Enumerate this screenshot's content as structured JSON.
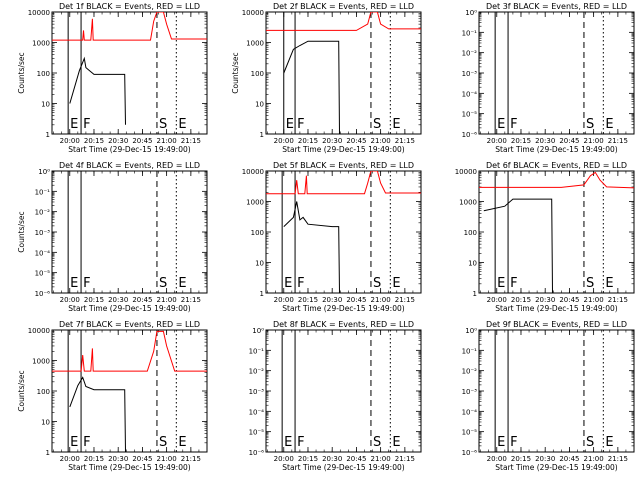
{
  "chart_data": [
    {
      "type": "line",
      "title": "Det 1f BLACK = Events, RED = LLD",
      "ylabel": "Counts/sec",
      "xlabel": "Start Time (29-Dec-15 19:49:00)",
      "x_ticks": [
        "20:00",
        "20:15",
        "20:30",
        "20:45",
        "21:00",
        "21:15"
      ],
      "y_ticks": [
        "1",
        "10",
        "100",
        "1000",
        "10000"
      ],
      "ylim": [
        1,
        10000
      ],
      "xlim": [
        "19:49",
        "21:25"
      ],
      "markers": [
        {
          "label": "E",
          "t": "19:59"
        },
        {
          "label": "F",
          "t": "20:07"
        },
        {
          "label": "S",
          "t": "20:54"
        },
        {
          "label": "E",
          "t": "21:06"
        }
      ],
      "series": [
        {
          "color": "#000000",
          "points": [
            [
              "20:00",
              10
            ],
            [
              "20:06",
              120
            ],
            [
              "20:09",
              300
            ],
            [
              "20:10",
              150
            ],
            [
              "20:13",
              110
            ],
            [
              "20:15",
              90
            ],
            [
              "20:22",
              90
            ],
            [
              "20:30",
              90
            ],
            [
              "20:34",
              90
            ],
            [
              "20:34.5",
              2
            ]
          ]
        },
        {
          "color": "#ff0000",
          "points": [
            [
              "19:49",
              1200
            ],
            [
              "20:08",
              1200
            ],
            [
              "20:08.5",
              2500
            ],
            [
              "20:09",
              1200
            ],
            [
              "20:13",
              1200
            ],
            [
              "20:14",
              6000
            ],
            [
              "20:14.5",
              1200
            ],
            [
              "20:50",
              1200
            ],
            [
              "20:52",
              5000
            ],
            [
              "20:54",
              10000
            ],
            [
              "20:58",
              10000
            ],
            [
              "21:00",
              4000
            ],
            [
              "21:03",
              1300
            ],
            [
              "21:25",
              1300
            ]
          ]
        }
      ]
    },
    {
      "type": "line",
      "title": "Det 2f BLACK = Events, RED = LLD",
      "ylabel": "Counts/sec",
      "xlabel": "Start Time (29-Dec-15 19:49:00)",
      "x_ticks": [
        "20:00",
        "20:15",
        "20:30",
        "20:45",
        "21:00",
        "21:15"
      ],
      "y_ticks": [
        "1",
        "10",
        "100",
        "1000",
        "10000"
      ],
      "ylim": [
        1,
        10000
      ],
      "xlim": [
        "19:49",
        "21:25"
      ],
      "markers": [
        {
          "label": "E",
          "t": "20:00"
        },
        {
          "label": "F",
          "t": "20:07"
        },
        {
          "label": "S",
          "t": "20:54"
        },
        {
          "label": "E",
          "t": "21:06"
        }
      ],
      "series": [
        {
          "color": "#000000",
          "points": [
            [
              "20:00",
              100
            ],
            [
              "20:06",
              600
            ],
            [
              "20:10",
              800
            ],
            [
              "20:15",
              1100
            ],
            [
              "20:30",
              1100
            ],
            [
              "20:34",
              1100
            ],
            [
              "20:34.5",
              1
            ]
          ]
        },
        {
          "color": "#ff0000",
          "points": [
            [
              "19:49",
              2500
            ],
            [
              "20:45",
              2500
            ],
            [
              "20:52",
              4000
            ],
            [
              "20:54",
              10000
            ],
            [
              "20:58",
              10000
            ],
            [
              "21:00",
              4000
            ],
            [
              "21:05",
              2800
            ],
            [
              "21:25",
              2800
            ]
          ]
        }
      ]
    },
    {
      "type": "line",
      "title": "Det 3f BLACK = Events, RED = LLD",
      "ylabel": "",
      "xlabel": "Start Time (29-Dec-15 19:49:00)",
      "x_ticks": [
        "20:00",
        "20:15",
        "20:30",
        "20:45",
        "21:00",
        "21:15"
      ],
      "y_ticks": [
        "10⁻⁶",
        "10⁻⁵",
        "10⁻⁴",
        "10⁻³",
        "10⁻²",
        "10⁻¹",
        "10⁰"
      ],
      "ylim": [
        1e-06,
        1
      ],
      "xlim": [
        "19:49",
        "21:25"
      ],
      "markers": [
        {
          "label": "E",
          "t": "19:59"
        },
        {
          "label": "F",
          "t": "20:07"
        },
        {
          "label": "S",
          "t": "20:54"
        },
        {
          "label": "E",
          "t": "21:06"
        }
      ],
      "series": []
    },
    {
      "type": "line",
      "title": "Det 4f BLACK = Events, RED = LLD",
      "ylabel": "Counts/sec",
      "xlabel": "Start Time (29-Dec-15 19:49:00)",
      "x_ticks": [
        "20:00",
        "20:15",
        "20:30",
        "20:45",
        "21:00",
        "21:15"
      ],
      "y_ticks": [
        "10⁻⁶",
        "10⁻⁵",
        "10⁻⁴",
        "10⁻³",
        "10⁻²",
        "10⁻¹",
        "10⁰"
      ],
      "ylim": [
        1e-06,
        1
      ],
      "xlim": [
        "19:49",
        "21:25"
      ],
      "markers": [
        {
          "label": "E",
          "t": "19:59"
        },
        {
          "label": "F",
          "t": "20:07"
        },
        {
          "label": "S",
          "t": "20:54"
        },
        {
          "label": "E",
          "t": "21:06"
        }
      ],
      "series": []
    },
    {
      "type": "line",
      "title": "Det 5f BLACK = Events, RED = LLD",
      "ylabel": "",
      "xlabel": "Start Time (29-Dec-15 19:49:00)",
      "x_ticks": [
        "20:00",
        "20:15",
        "20:30",
        "20:45",
        "21:00",
        "21:15"
      ],
      "y_ticks": [
        "1",
        "10",
        "100",
        "1000",
        "10000"
      ],
      "ylim": [
        1,
        10000
      ],
      "xlim": [
        "19:49",
        "21:25"
      ],
      "markers": [
        {
          "label": "E",
          "t": "19:59"
        },
        {
          "label": "F",
          "t": "20:07"
        },
        {
          "label": "S",
          "t": "20:54"
        },
        {
          "label": "E",
          "t": "21:06"
        }
      ],
      "series": [
        {
          "color": "#000000",
          "points": [
            [
              "20:00",
              150
            ],
            [
              "20:06",
              300
            ],
            [
              "20:08",
              1000
            ],
            [
              "20:10",
              250
            ],
            [
              "20:12",
              300
            ],
            [
              "20:15",
              180
            ],
            [
              "20:30",
              150
            ],
            [
              "20:34",
              150
            ],
            [
              "20:34.5",
              1
            ]
          ]
        },
        {
          "color": "#ff0000",
          "points": [
            [
              "19:49",
              1800
            ],
            [
              "20:07",
              1800
            ],
            [
              "20:08",
              5000
            ],
            [
              "20:09",
              1800
            ],
            [
              "20:13",
              1800
            ],
            [
              "20:14",
              7000
            ],
            [
              "20:14.5",
              1800
            ],
            [
              "20:50",
              1800
            ],
            [
              "20:52",
              4000
            ],
            [
              "20:54",
              10000
            ],
            [
              "20:58",
              10000
            ],
            [
              "21:00",
              4000
            ],
            [
              "21:03",
              1900
            ],
            [
              "21:25",
              1900
            ]
          ]
        }
      ]
    },
    {
      "type": "line",
      "title": "Det 6f BLACK = Events, RED = LLD",
      "ylabel": "",
      "xlabel": "Start Time (29-Dec-15 19:49:00)",
      "x_ticks": [
        "20:00",
        "20:15",
        "20:30",
        "20:45",
        "21:00",
        "21:15"
      ],
      "y_ticks": [
        "1",
        "10",
        "100",
        "1000",
        "10000"
      ],
      "ylim": [
        1,
        10000
      ],
      "xlim": [
        "19:49",
        "21:25"
      ],
      "markers": [
        {
          "label": "E",
          "t": "19:59"
        },
        {
          "label": "F",
          "t": "20:07"
        },
        {
          "label": "S",
          "t": "20:54"
        },
        {
          "label": "E",
          "t": "21:06"
        }
      ],
      "series": [
        {
          "color": "#000000",
          "points": [
            [
              "19:52",
              500
            ],
            [
              "20:05",
              700
            ],
            [
              "20:10",
              1200
            ],
            [
              "20:30",
              1200
            ],
            [
              "20:34",
              1200
            ],
            [
              "20:34.5",
              1
            ]
          ]
        },
        {
          "color": "#ff0000",
          "points": [
            [
              "19:49",
              2900
            ],
            [
              "20:40",
              2900
            ],
            [
              "20:54",
              3500
            ],
            [
              "20:58",
              7000
            ],
            [
              "21:01",
              9000
            ],
            [
              "21:04",
              5000
            ],
            [
              "21:08",
              3000
            ],
            [
              "21:25",
              2800
            ]
          ]
        }
      ]
    },
    {
      "type": "line",
      "title": "Det 7f BLACK = Events, RED = LLD",
      "ylabel": "Counts/sec",
      "xlabel": "Start Time (29-Dec-15 19:49:00)",
      "x_ticks": [
        "20:00",
        "20:15",
        "20:30",
        "20:45",
        "21:00",
        "21:15"
      ],
      "y_ticks": [
        "1",
        "10",
        "100",
        "1000",
        "10000"
      ],
      "ylim": [
        1,
        10000
      ],
      "xlim": [
        "19:49",
        "21:25"
      ],
      "markers": [
        {
          "label": "E",
          "t": "19:59"
        },
        {
          "label": "F",
          "t": "20:07"
        },
        {
          "label": "S",
          "t": "20:54"
        },
        {
          "label": "E",
          "t": "21:06"
        }
      ],
      "series": [
        {
          "color": "#000000",
          "points": [
            [
              "20:00",
              30
            ],
            [
              "20:05",
              150
            ],
            [
              "20:08",
              280
            ],
            [
              "20:10",
              140
            ],
            [
              "20:15",
              110
            ],
            [
              "20:30",
              110
            ],
            [
              "20:34",
              110
            ],
            [
              "20:34.5",
              1
            ]
          ]
        },
        {
          "color": "#ff0000",
          "points": [
            [
              "19:49",
              450
            ],
            [
              "20:07",
              450
            ],
            [
              "20:08",
              1500
            ],
            [
              "20:09",
              450
            ],
            [
              "20:13",
              450
            ],
            [
              "20:14",
              2500
            ],
            [
              "20:14.5",
              450
            ],
            [
              "20:48",
              450
            ],
            [
              "20:52",
              2000
            ],
            [
              "20:54",
              9000
            ],
            [
              "20:58",
              9000
            ],
            [
              "21:00",
              3000
            ],
            [
              "21:05",
              450
            ],
            [
              "21:25",
              450
            ]
          ]
        }
      ]
    },
    {
      "type": "line",
      "title": "Det 8f BLACK = Events, RED = LLD",
      "ylabel": "",
      "xlabel": "Start Time (29-Dec-15 19:49:00)",
      "x_ticks": [
        "20:00",
        "20:15",
        "20:30",
        "20:45",
        "21:00",
        "21:15"
      ],
      "y_ticks": [
        "10⁻⁶",
        "10⁻⁵",
        "10⁻⁴",
        "10⁻³",
        "10⁻²",
        "10⁻¹",
        "10⁰"
      ],
      "ylim": [
        1e-06,
        1
      ],
      "xlim": [
        "19:49",
        "21:25"
      ],
      "markers": [
        {
          "label": "E",
          "t": "19:59"
        },
        {
          "label": "F",
          "t": "20:07"
        },
        {
          "label": "S",
          "t": "20:54"
        },
        {
          "label": "E",
          "t": "21:06"
        }
      ],
      "series": []
    },
    {
      "type": "line",
      "title": "Det 9f BLACK = Events, RED = LLD",
      "ylabel": "",
      "xlabel": "Start Time (29-Dec-15 19:49:00)",
      "x_ticks": [
        "20:00",
        "20:15",
        "20:30",
        "20:45",
        "21:00",
        "21:15"
      ],
      "y_ticks": [
        "10⁻⁶",
        "10⁻⁵",
        "10⁻⁴",
        "10⁻³",
        "10⁻²",
        "10⁻¹",
        "10⁰"
      ],
      "ylim": [
        1e-06,
        1
      ],
      "xlim": [
        "19:49",
        "21:25"
      ],
      "markers": [
        {
          "label": "E",
          "t": "19:59"
        },
        {
          "label": "F",
          "t": "20:07"
        },
        {
          "label": "S",
          "t": "20:54"
        },
        {
          "label": "E",
          "t": "21:06"
        }
      ],
      "series": []
    }
  ],
  "colors": {
    "events": "#000000",
    "lld": "#ff0000",
    "background": "#ffffff"
  }
}
